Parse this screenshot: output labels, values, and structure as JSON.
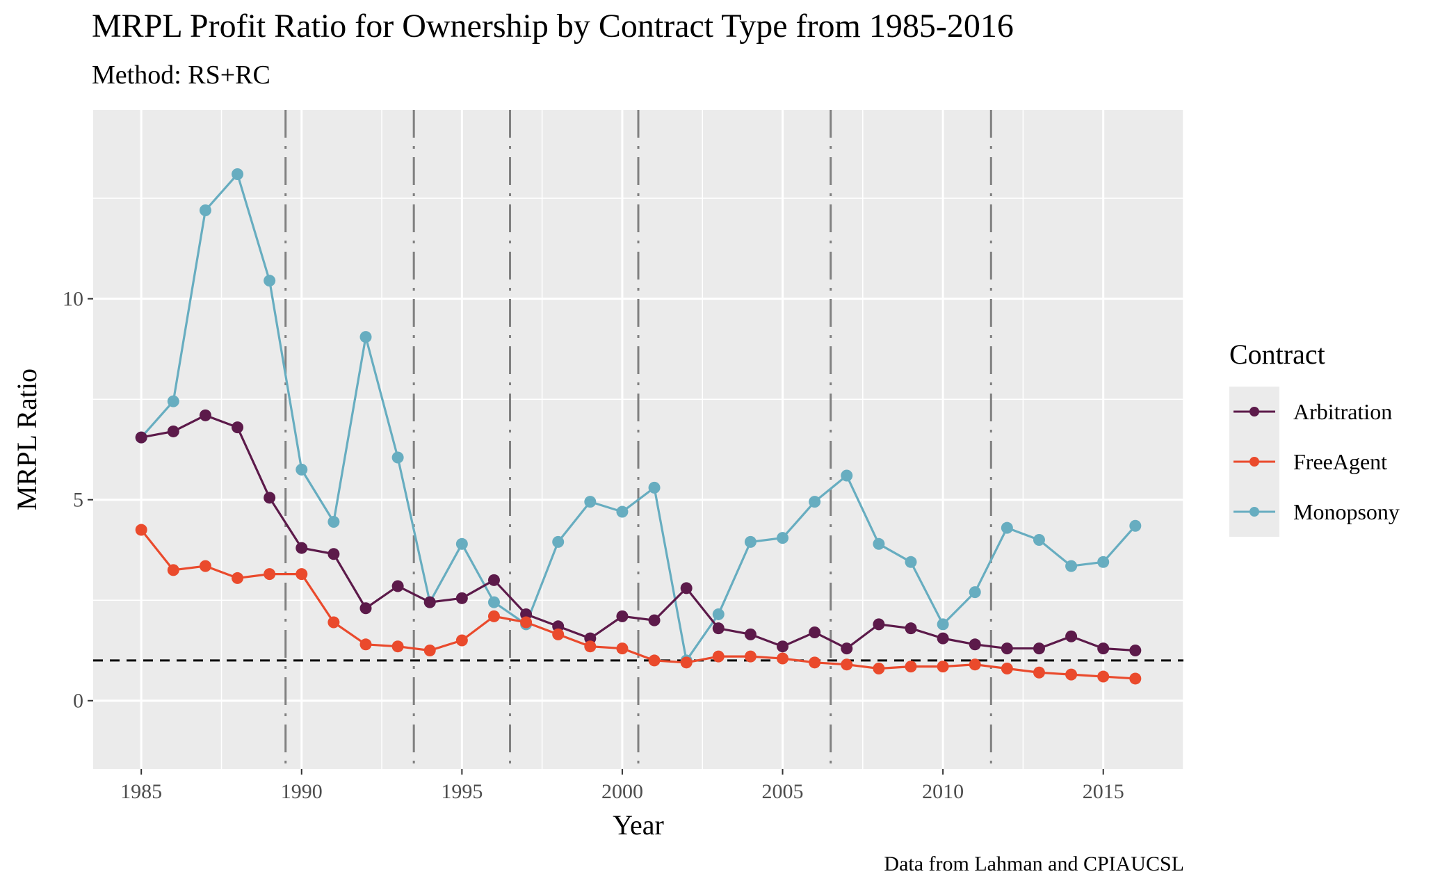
{
  "header": {
    "title": "MRPL Profit Ratio for Ownership by Contract Type from 1985-2016",
    "subtitle": "Method: RS+RC"
  },
  "caption": "Data from Lahman and CPIAUCSL",
  "legend": {
    "title": "Contract",
    "items": [
      {
        "label": "Arbitration",
        "color": "#5c1a4a"
      },
      {
        "label": "FreeAgent",
        "color": "#ea4a2c"
      },
      {
        "label": "Monopsony",
        "color": "#67adc0"
      }
    ]
  },
  "chart_data": {
    "type": "line",
    "title": "MRPL Profit Ratio for Ownership by Contract Type from 1985-2016",
    "subtitle": "Method: RS+RC",
    "xlabel": "Year",
    "ylabel": "MRPL Ratio",
    "xlim": [
      1983.5,
      2017.5
    ],
    "ylim": [
      -1.7,
      14.7
    ],
    "x_ticks": [
      1985,
      1990,
      1995,
      2000,
      2005,
      2010,
      2015
    ],
    "y_ticks": [
      0,
      5,
      10
    ],
    "grid": true,
    "legend_position": "right",
    "reference_hline": 1,
    "vlines": [
      1989.5,
      1993.5,
      1996.5,
      2000.5,
      2006.5,
      2011.5
    ],
    "x": [
      1985,
      1986,
      1987,
      1988,
      1989,
      1990,
      1991,
      1992,
      1993,
      1994,
      1995,
      1996,
      1997,
      1998,
      1999,
      2000,
      2001,
      2002,
      2003,
      2004,
      2005,
      2006,
      2007,
      2008,
      2009,
      2010,
      2011,
      2012,
      2013,
      2014,
      2015,
      2016
    ],
    "series": [
      {
        "name": "Monopsony",
        "color": "#67adc0",
        "values": [
          6.55,
          7.45,
          12.2,
          13.1,
          10.45,
          5.75,
          4.45,
          9.05,
          6.05,
          2.45,
          3.9,
          2.45,
          1.9,
          3.95,
          4.95,
          4.7,
          5.3,
          1.0,
          2.15,
          3.95,
          4.05,
          4.95,
          5.6,
          3.9,
          3.45,
          1.9,
          2.7,
          4.3,
          4.0,
          3.35,
          3.45,
          4.35
        ]
      },
      {
        "name": "Arbitration",
        "color": "#5c1a4a",
        "values": [
          6.55,
          6.7,
          7.1,
          6.8,
          5.05,
          3.8,
          3.65,
          2.3,
          2.85,
          2.45,
          2.55,
          3.0,
          2.15,
          1.85,
          1.55,
          2.1,
          2.0,
          2.8,
          1.8,
          1.65,
          1.35,
          1.7,
          1.3,
          1.9,
          1.8,
          1.55,
          1.4,
          1.3,
          1.3,
          1.6,
          1.3,
          1.25
        ]
      },
      {
        "name": "FreeAgent",
        "color": "#ea4a2c",
        "values": [
          4.25,
          3.25,
          3.35,
          3.05,
          3.15,
          3.15,
          1.95,
          1.4,
          1.35,
          1.25,
          1.5,
          2.1,
          1.95,
          1.65,
          1.35,
          1.3,
          1.0,
          0.95,
          1.1,
          1.1,
          1.05,
          0.95,
          0.9,
          0.8,
          0.85,
          0.85,
          0.9,
          0.8,
          0.7,
          0.65,
          0.6,
          0.55
        ]
      }
    ]
  }
}
